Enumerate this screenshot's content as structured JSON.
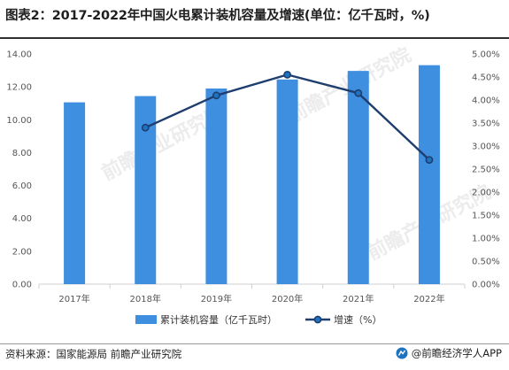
{
  "title": "图表2：2017-2022年中国火电累计装机容量及增速(单位：亿千瓦时，%)",
  "footer": {
    "source": "资料来源：国家能源局 前瞻产业研究院",
    "brand": "@前瞻经济学人APP"
  },
  "watermark": "前瞻产业研究院",
  "colors": {
    "bar": "#3f8fe0",
    "line": "#1f3d6e",
    "marker_fill": "#1e73be",
    "axis": "#cfcfcf"
  },
  "chart_data": {
    "type": "bar",
    "categories": [
      "2017年",
      "2018年",
      "2019年",
      "2020年",
      "2021年",
      "2022年"
    ],
    "series": [
      {
        "name": "累计装机容量（亿千瓦时）",
        "type": "bar",
        "axis": "left",
        "values": [
          11.06,
          11.44,
          11.9,
          12.45,
          12.97,
          13.32
        ]
      },
      {
        "name": "增速（%）",
        "type": "line",
        "axis": "right",
        "values": [
          null,
          3.4,
          4.1,
          4.55,
          4.15,
          2.7
        ]
      }
    ],
    "y_left": {
      "ylim": [
        0,
        14
      ],
      "ticks": [
        "0.00",
        "2.00",
        "4.00",
        "6.00",
        "8.00",
        "10.00",
        "12.00",
        "14.00"
      ]
    },
    "y_right": {
      "ylim": [
        0,
        5
      ],
      "ticks": [
        "0.00%",
        "0.50%",
        "1.00%",
        "1.50%",
        "2.00%",
        "2.50%",
        "3.00%",
        "3.50%",
        "4.00%",
        "4.50%",
        "5.00%"
      ]
    },
    "grid": false,
    "legend": "bottom-center"
  }
}
